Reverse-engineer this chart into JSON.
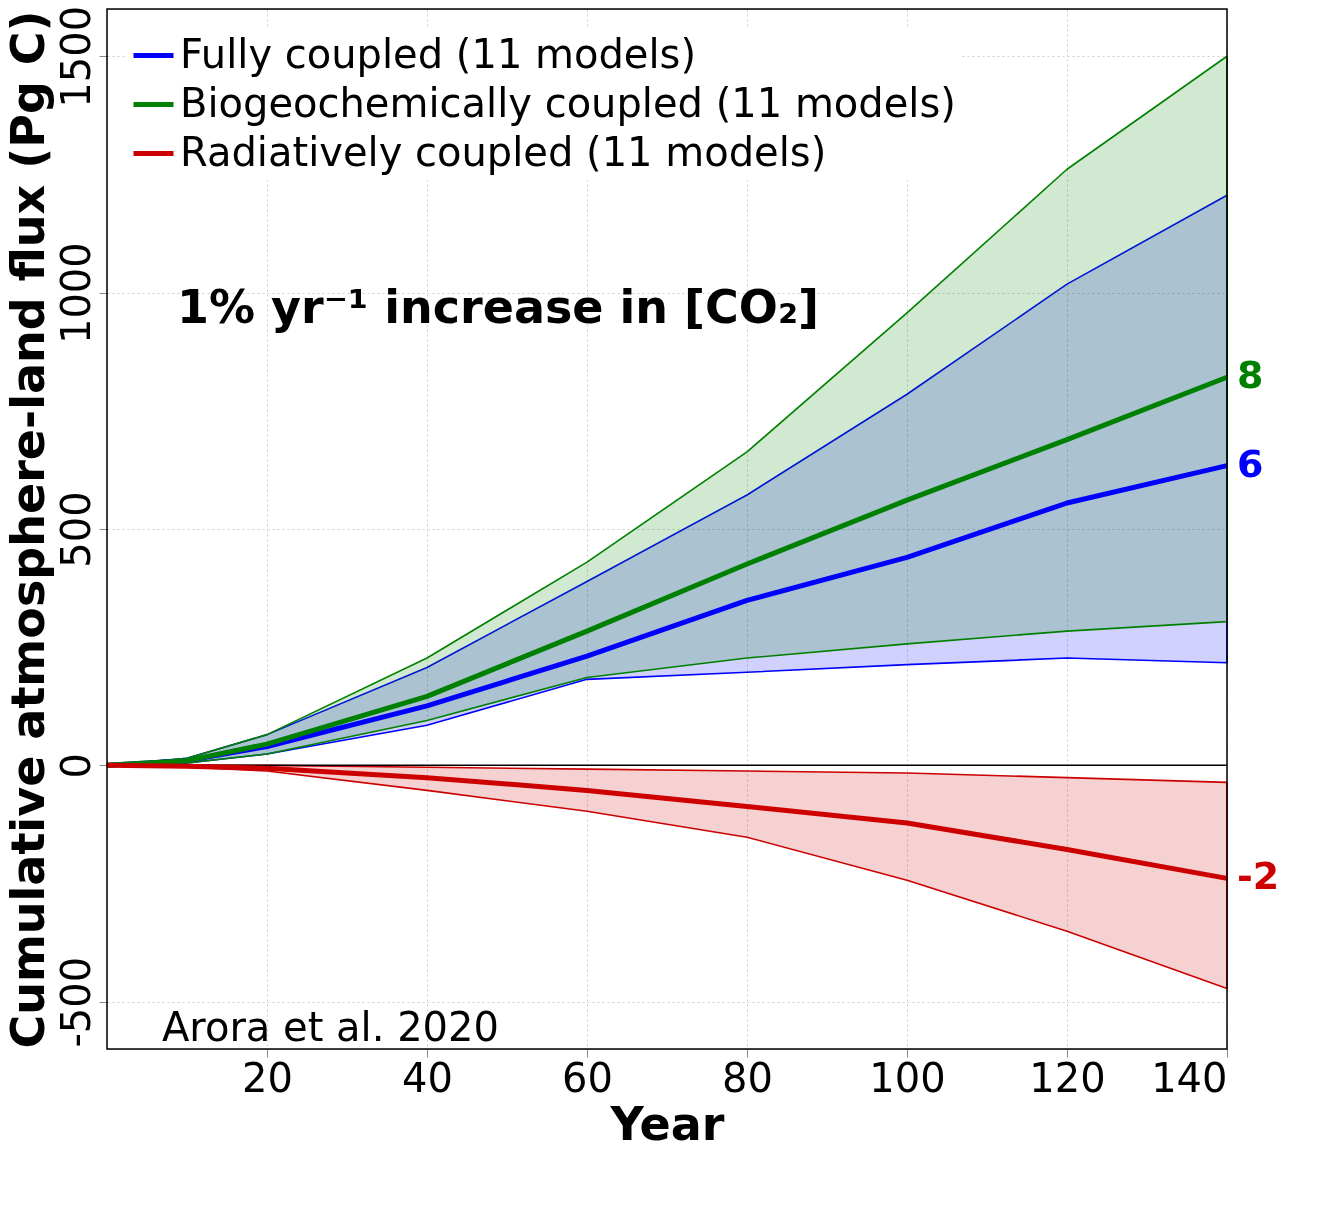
{
  "chart_data": {
    "type": "line",
    "xlabel": "Year",
    "ylabel": "Cumulative atmosphere-land flux (Pg C)",
    "xlim": [
      0,
      140
    ],
    "xticks": [
      20,
      40,
      60,
      80,
      100,
      120,
      140
    ],
    "ylim": [
      -600,
      1600
    ],
    "yticks": [
      -500,
      0,
      500,
      1000,
      1500
    ],
    "grid": true,
    "legend": "top left",
    "x": [
      0,
      10,
      20,
      40,
      60,
      80,
      100,
      120,
      140
    ],
    "series": [
      {
        "name": "Fully coupled (11 models)",
        "color": "#0000ff",
        "values": [
          0,
          10,
          40,
          126,
          231,
          349,
          440,
          555,
          634
        ],
        "lower": [
          0,
          5,
          24,
          85,
          182,
          197,
          213,
          227,
          217
        ],
        "upper": [
          0,
          15,
          65,
          207,
          389,
          572,
          785,
          1018,
          1206
        ]
      },
      {
        "name": "Biogeochemically coupled (11 models)",
        "color": "#008000",
        "values": [
          0,
          10,
          45,
          146,
          284,
          426,
          561,
          689,
          821
        ],
        "lower": [
          0,
          5,
          24,
          95,
          186,
          227,
          257,
          284,
          304
        ],
        "upper": [
          0,
          15,
          65,
          227,
          430,
          663,
          957,
          1261,
          1500
        ]
      },
      {
        "name": "Radiatively coupled (11 models)",
        "color": "#cc0000",
        "values": [
          0,
          -2,
          -6,
          -26,
          -53,
          -87,
          -122,
          -178,
          -239
        ],
        "lower": [
          0,
          -4,
          -12,
          -53,
          -97,
          -152,
          -243,
          -351,
          -472
        ],
        "upper": [
          0,
          0,
          0,
          -4,
          -8,
          -12,
          -16,
          -26,
          -36
        ]
      }
    ],
    "ref_lines": [
      {
        "axis": "y",
        "value": 0,
        "color": "#000000"
      }
    ],
    "annotations": [
      "1% yr⁻¹ increase in [CO₂]",
      "Arora et al. 2020",
      "8",
      "6",
      "-2"
    ]
  }
}
